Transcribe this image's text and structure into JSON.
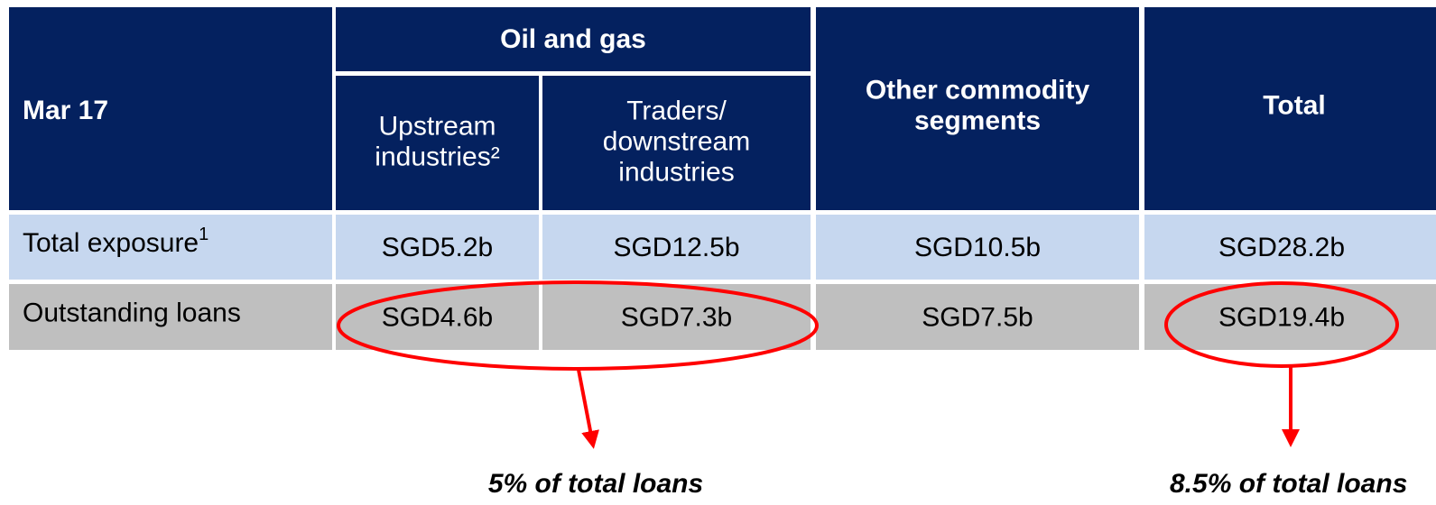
{
  "table": {
    "corner": "Mar 17",
    "group": "Oil and gas",
    "columns": [
      [
        "Upstream",
        "industries²"
      ],
      [
        "Traders/",
        "downstream",
        "industries"
      ],
      [
        "Other commodity",
        "segments"
      ],
      [
        "Total"
      ]
    ],
    "rows": [
      {
        "label": "Total exposure",
        "note": "1",
        "cells": [
          "SGD5.2b",
          "SGD12.5b",
          "SGD10.5b",
          "SGD28.2b"
        ]
      },
      {
        "label": "Outstanding loans",
        "cells": [
          "SGD4.6b",
          "SGD7.3b",
          "SGD7.5b",
          "SGD19.4b"
        ]
      }
    ]
  },
  "annotations": [
    "5% of total loans",
    "8.5% of total loans"
  ]
}
